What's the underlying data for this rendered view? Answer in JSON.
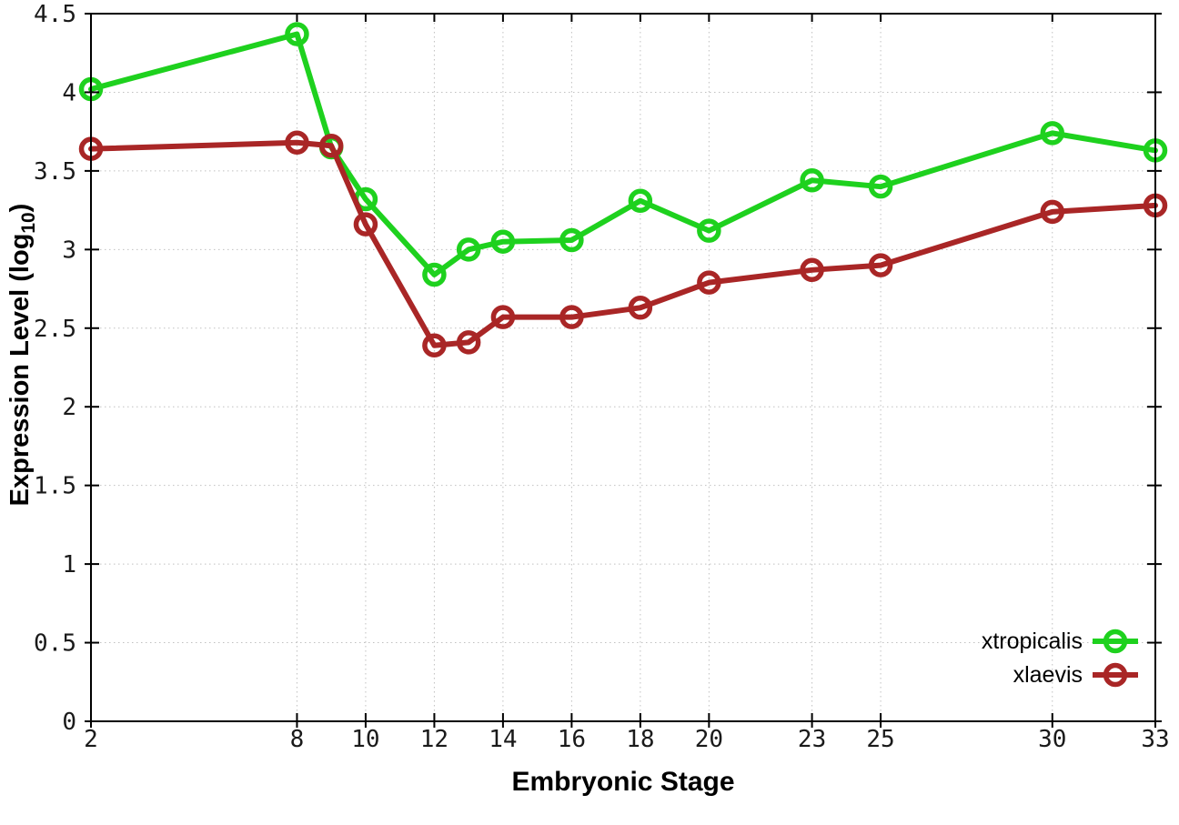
{
  "figure": {
    "xlabel": "Embryonic Stage",
    "ylabel_prefix": "Expression Level (log",
    "ylabel_sub": "10",
    "ylabel_suffix": ")"
  },
  "chart_data": {
    "type": "line",
    "title": "",
    "xlabel": "Embryonic Stage",
    "ylabel": "Expression Level (log10)",
    "x": [
      2,
      8,
      9,
      10,
      12,
      13,
      14,
      16,
      18,
      20,
      23,
      25,
      30,
      33
    ],
    "series": [
      {
        "name": "xtropicalis",
        "color": "#1ed11e",
        "values": [
          4.02,
          4.37,
          3.65,
          3.32,
          2.84,
          3.0,
          3.05,
          3.06,
          3.31,
          3.12,
          3.44,
          3.4,
          3.74,
          3.63
        ]
      },
      {
        "name": "xlaevis",
        "color": "#a92626",
        "values": [
          3.64,
          3.68,
          3.66,
          3.16,
          2.39,
          2.41,
          2.57,
          2.57,
          2.63,
          2.79,
          2.87,
          2.9,
          3.24,
          3.28
        ]
      }
    ],
    "xlim": [
      2,
      33
    ],
    "ylim": [
      0,
      4.5
    ],
    "xtick_labels": [
      "2",
      "8",
      "10",
      "12",
      "14",
      "16",
      "18",
      "20",
      "23",
      "25",
      "30",
      "33"
    ],
    "xtick_values": [
      2,
      8,
      10,
      12,
      14,
      16,
      18,
      20,
      23,
      25,
      30,
      33
    ],
    "ytick_labels": [
      "0",
      "0.5",
      "1",
      "1.5",
      "2",
      "2.5",
      "3",
      "3.5",
      "4",
      "4.5"
    ],
    "ytick_values": [
      0,
      0.5,
      1,
      1.5,
      2,
      2.5,
      3,
      3.5,
      4,
      4.5
    ],
    "grid": true,
    "grid_style": "dotted",
    "marker": "open-circle",
    "legend_position": "bottom-right",
    "colors": {
      "grid": "#c0c0c0",
      "axis": "#000000",
      "background": "#ffffff"
    }
  }
}
